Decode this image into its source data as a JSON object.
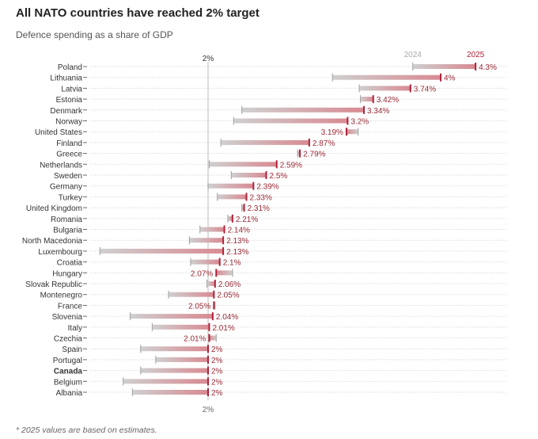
{
  "title": "All NATO countries have reached 2% target",
  "subtitle": "Defence spending as a share of GDP",
  "footnote": "* 2025 values are based on estimates.",
  "colors": {
    "y2024": "#b8b8b8",
    "y2025": "#b0223a",
    "label": "#9a2a35"
  },
  "chart_data": {
    "type": "dumbbell",
    "reference_line": {
      "value": 2,
      "label": "2%"
    },
    "series_labels": [
      "2024",
      "2025"
    ],
    "categories": [
      "Poland",
      "Lithuania",
      "Latvia",
      "Estonia",
      "Denmark",
      "Norway",
      "United States",
      "Finland",
      "Greece",
      "Netherlands",
      "Sweden",
      "Germany",
      "Turkey",
      "United Kingdom",
      "Romania",
      "Bulgaria",
      "North Macedonia",
      "Luxembourg",
      "Croatia",
      "Hungary",
      "Slovak Republic",
      "Montenegro",
      "France",
      "Slovenia",
      "Italy",
      "Czechia",
      "Spain",
      "Portugal",
      "Canada",
      "Belgium",
      "Albania"
    ],
    "bold_categories": [
      "Canada"
    ],
    "series": [
      {
        "name": "2024",
        "values": [
          3.76,
          3.07,
          3.3,
          3.31,
          2.29,
          2.22,
          3.29,
          2.11,
          2.77,
          2.01,
          2.2,
          2.0,
          2.08,
          2.29,
          2.17,
          1.93,
          1.84,
          1.07,
          1.85,
          2.21,
          1.99,
          1.66,
          2.06,
          1.33,
          1.52,
          2.07,
          1.42,
          1.55,
          1.42,
          1.27,
          1.35
        ]
      },
      {
        "name": "2025",
        "values": [
          4.3,
          4,
          3.74,
          3.42,
          3.34,
          3.2,
          3.19,
          2.87,
          2.79,
          2.59,
          2.5,
          2.39,
          2.33,
          2.31,
          2.21,
          2.14,
          2.13,
          2.13,
          2.1,
          2.07,
          2.06,
          2.05,
          2.05,
          2.04,
          2.01,
          2.01,
          2,
          2,
          2,
          2,
          2
        ]
      }
    ],
    "value_labels": [
      "4.3%",
      "4%",
      "3.74%",
      "3.42%",
      "3.34%",
      "3.2%",
      "3.19%",
      "2.87%",
      "2.79%",
      "2.59%",
      "2.5%",
      "2.39%",
      "2.33%",
      "2.31%",
      "2.21%",
      "2.14%",
      "2.13%",
      "2.13%",
      "2.1%",
      "2.07%",
      "2.06%",
      "2.05%",
      "2.05%",
      "2.04%",
      "2.01%",
      "2.01%",
      "2%",
      "2%",
      "2%",
      "2%",
      "2%"
    ],
    "grid": "dotted horizontal",
    "legend": "top, above first row"
  }
}
